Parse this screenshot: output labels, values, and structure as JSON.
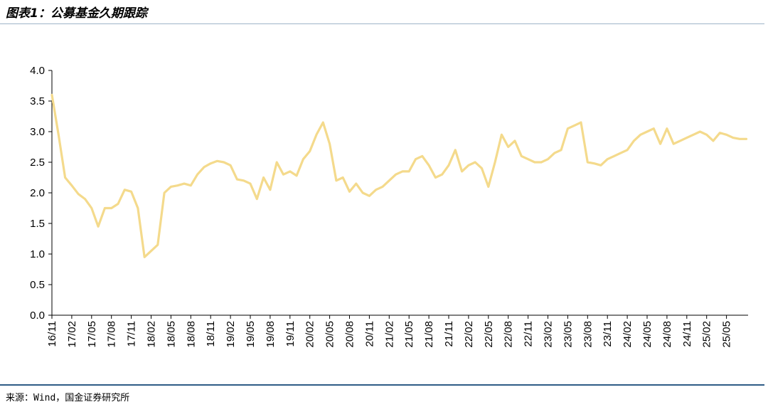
{
  "header": {
    "title": "图表1：公募基金久期跟踪"
  },
  "footer": {
    "source": "来源：Wind，国金证券研究所"
  },
  "colors": {
    "line": "#F4DA8C",
    "axis": "#000000",
    "top_rule": "#9FB5C8",
    "bottom_rule": "#2E5C86"
  },
  "chart_data": {
    "type": "line",
    "title": "",
    "xlabel": "",
    "ylabel": "",
    "ylim": [
      0,
      4
    ],
    "y_ticks": [
      "0.0",
      "0.5",
      "1.0",
      "1.5",
      "2.0",
      "2.5",
      "3.0",
      "3.5",
      "4.0"
    ],
    "x_ticks": [
      "16/11",
      "17/02",
      "17/05",
      "17/08",
      "17/11",
      "18/02",
      "18/05",
      "18/08",
      "18/11",
      "19/02",
      "19/05",
      "19/08",
      "19/11",
      "20/02",
      "20/05",
      "20/08",
      "20/11",
      "21/02",
      "21/05",
      "21/08",
      "21/11",
      "22/02",
      "22/05",
      "22/08",
      "22/11",
      "23/02",
      "23/05",
      "23/08",
      "23/11",
      "24/02",
      "24/05",
      "24/08",
      "24/11",
      "25/02",
      "25/05"
    ],
    "grid": false,
    "legend": "none",
    "series": [
      {
        "x": [
          "2016-11",
          "2016-12",
          "2017-01",
          "2017-02",
          "2017-03",
          "2017-04",
          "2017-05",
          "2017-06",
          "2017-07",
          "2017-08",
          "2017-09",
          "2017-10",
          "2017-11",
          "2017-12",
          "2018-01",
          "2018-02",
          "2018-03",
          "2018-04",
          "2018-05",
          "2018-06",
          "2018-07",
          "2018-08",
          "2018-09",
          "2018-10",
          "2018-11",
          "2018-12",
          "2019-01",
          "2019-02",
          "2019-03",
          "2019-04",
          "2019-05",
          "2019-06",
          "2019-07",
          "2019-08",
          "2019-09",
          "2019-10",
          "2019-11",
          "2019-12",
          "2020-01",
          "2020-02",
          "2020-03",
          "2020-04",
          "2020-05",
          "2020-06",
          "2020-07",
          "2020-08",
          "2020-09",
          "2020-10",
          "2020-11",
          "2020-12",
          "2021-01",
          "2021-02",
          "2021-03",
          "2021-04",
          "2021-05",
          "2021-06",
          "2021-07",
          "2021-08",
          "2021-09",
          "2021-10",
          "2021-11",
          "2021-12",
          "2022-01",
          "2022-02",
          "2022-03",
          "2022-04",
          "2022-05",
          "2022-06",
          "2022-07",
          "2022-08",
          "2022-09",
          "2022-10",
          "2022-11",
          "2022-12",
          "2023-01",
          "2023-02",
          "2023-03",
          "2023-04",
          "2023-05",
          "2023-06",
          "2023-07",
          "2023-08",
          "2023-09",
          "2023-10",
          "2023-11",
          "2023-12",
          "2024-01",
          "2024-02",
          "2024-03",
          "2024-04",
          "2024-05",
          "2024-06",
          "2024-07",
          "2024-08",
          "2024-09",
          "2024-10",
          "2024-11",
          "2024-12",
          "2025-01",
          "2025-02",
          "2025-03",
          "2025-04",
          "2025-05",
          "2025-06",
          "2025-07",
          "2025-08"
        ],
        "values": [
          3.6,
          2.95,
          2.25,
          2.12,
          1.98,
          1.9,
          1.75,
          1.45,
          1.75,
          1.75,
          1.82,
          2.05,
          2.02,
          1.75,
          0.95,
          1.05,
          1.15,
          2.0,
          2.1,
          2.12,
          2.15,
          2.12,
          2.3,
          2.42,
          2.48,
          2.52,
          2.5,
          2.45,
          2.22,
          2.2,
          2.15,
          1.9,
          2.25,
          2.05,
          2.5,
          2.3,
          2.35,
          2.28,
          2.55,
          2.68,
          2.95,
          3.15,
          2.8,
          2.2,
          2.25,
          2.02,
          2.15,
          2.0,
          1.95,
          2.05,
          2.1,
          2.2,
          2.3,
          2.35,
          2.35,
          2.55,
          2.6,
          2.45,
          2.25,
          2.3,
          2.45,
          2.7,
          2.35,
          2.45,
          2.5,
          2.4,
          2.1,
          2.5,
          2.95,
          2.75,
          2.85,
          2.6,
          2.55,
          2.5,
          2.5,
          2.55,
          2.65,
          2.7,
          3.05,
          3.1,
          3.15,
          2.5,
          2.48,
          2.45,
          2.55,
          2.6,
          2.65,
          2.7,
          2.85,
          2.95,
          3.0,
          3.05,
          2.8,
          3.05,
          2.8,
          2.85,
          2.9,
          2.95,
          3.0,
          2.95,
          2.85,
          2.98,
          2.95,
          2.9,
          2.88,
          2.88
        ]
      }
    ]
  }
}
